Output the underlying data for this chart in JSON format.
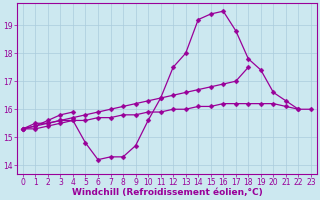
{
  "background_color": "#cce8f0",
  "grid_color": "#aaccdd",
  "line_color": "#990099",
  "marker": "D",
  "markersize": 2.5,
  "linewidth": 0.9,
  "xlabel": "Windchill (Refroidissement éolien,°C)",
  "xlabel_fontsize": 6.5,
  "tick_fontsize": 5.5,
  "ylim": [
    13.7,
    19.8
  ],
  "xlim": [
    -0.5,
    23.5
  ],
  "yticks": [
    14,
    15,
    16,
    17,
    18,
    19
  ],
  "xticks": [
    0,
    1,
    2,
    3,
    4,
    5,
    6,
    7,
    8,
    9,
    10,
    11,
    12,
    13,
    14,
    15,
    16,
    17,
    18,
    19,
    20,
    21,
    22,
    23
  ],
  "series": [
    [
      15.3,
      15.5,
      15.5,
      15.6,
      15.6,
      14.8,
      14.2,
      14.3,
      14.3,
      14.7,
      15.6,
      16.4,
      17.5,
      18.0,
      19.2,
      19.4,
      19.5,
      18.8,
      17.8,
      17.4,
      16.6,
      16.3,
      16.0,
      null
    ],
    [
      15.3,
      15.4,
      15.5,
      15.6,
      15.7,
      15.8,
      15.9,
      16.0,
      16.1,
      16.2,
      16.3,
      16.4,
      16.5,
      16.6,
      16.7,
      16.8,
      16.9,
      17.0,
      17.5,
      null,
      null,
      null,
      null,
      null
    ],
    [
      15.3,
      15.3,
      15.4,
      15.5,
      15.6,
      15.6,
      15.7,
      15.7,
      15.8,
      15.8,
      15.9,
      15.9,
      16.0,
      16.0,
      16.1,
      16.1,
      16.2,
      16.2,
      16.2,
      16.2,
      16.2,
      16.1,
      16.0,
      16.0
    ],
    [
      15.3,
      15.4,
      15.6,
      15.8,
      15.9,
      null,
      null,
      null,
      null,
      null,
      null,
      null,
      null,
      null,
      null,
      null,
      null,
      null,
      null,
      null,
      null,
      null,
      null,
      null
    ]
  ]
}
